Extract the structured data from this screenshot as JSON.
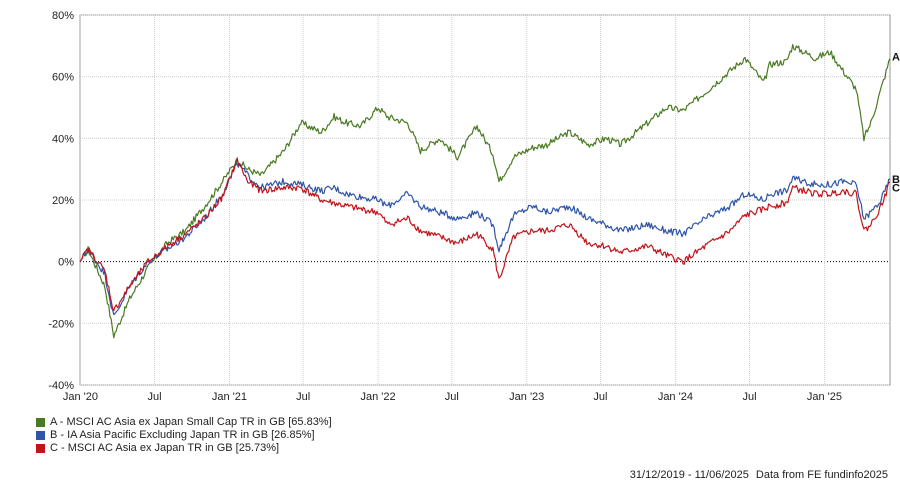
{
  "chart_data": {
    "type": "line",
    "ylim": [
      -40,
      80
    ],
    "y_ticks": [
      "80%",
      "60%",
      "40%",
      "20%",
      "0%",
      "-20%",
      "-40%"
    ],
    "y_tick_values": [
      80,
      60,
      40,
      20,
      0,
      -20,
      -40
    ],
    "x_tick_labels": [
      "Jan '20",
      "Jul",
      "Jan '21",
      "Jul",
      "Jan '22",
      "Jul",
      "Jan '23",
      "Jul",
      "Jan '24",
      "Jul",
      "Jan '25"
    ],
    "x_tick_dates": [
      "2020-01-01",
      "2020-07-01",
      "2021-01-01",
      "2021-07-01",
      "2022-01-01",
      "2022-07-01",
      "2023-01-01",
      "2023-07-01",
      "2024-01-01",
      "2024-07-01",
      "2025-01-01"
    ],
    "x_range": [
      "2019-12-31",
      "2025-06-11"
    ],
    "grid": true,
    "zero_line": "dotted",
    "dates": [
      "2019-12-31",
      "2020-01-20",
      "2020-03-01",
      "2020-03-23",
      "2020-05-01",
      "2020-06-15",
      "2020-08-01",
      "2020-09-15",
      "2020-11-01",
      "2020-12-15",
      "2021-01-20",
      "2021-02-15",
      "2021-03-20",
      "2021-05-15",
      "2021-06-25",
      "2021-08-15",
      "2021-09-15",
      "2021-10-15",
      "2021-11-20",
      "2022-01-01",
      "2022-01-25",
      "2022-03-15",
      "2022-04-15",
      "2022-06-01",
      "2022-07-15",
      "2022-09-01",
      "2022-10-10",
      "2022-10-25",
      "2022-11-30",
      "2023-01-15",
      "2023-02-20",
      "2023-04-15",
      "2023-06-01",
      "2023-07-15",
      "2023-08-20",
      "2023-10-25",
      "2023-12-10",
      "2024-01-20",
      "2024-03-15",
      "2024-05-15",
      "2024-06-20",
      "2024-08-05",
      "2024-08-20",
      "2024-09-30",
      "2024-10-15",
      "2024-12-10",
      "2025-01-15",
      "2025-02-15",
      "2025-03-20",
      "2025-04-08",
      "2025-04-25",
      "2025-05-20",
      "2025-06-11"
    ],
    "series": [
      {
        "label": "A",
        "name": "A - MSCI AC Asia ex Japan Small Cap TR in GB [65.83%]",
        "color": "#4a7a22",
        "values": [
          0,
          4,
          -8,
          -24,
          -12,
          -2,
          6,
          10,
          18,
          26,
          33,
          30,
          28,
          36,
          45,
          42,
          47,
          45,
          44,
          50,
          47,
          45,
          36,
          40,
          34,
          44,
          35,
          26,
          34,
          37,
          38,
          42,
          38,
          40,
          38,
          45,
          50,
          49,
          55,
          62,
          66,
          58,
          64,
          65,
          70,
          66,
          68,
          62,
          56,
          40,
          45,
          56,
          65.83
        ]
      },
      {
        "label": "B",
        "name": "B - IA Asia Pacific Excluding Japan TR in GB [26.85%]",
        "color": "#2f55a8",
        "values": [
          0,
          4,
          -4,
          -18,
          -8,
          0,
          4,
          8,
          14,
          22,
          32,
          28,
          24,
          26,
          25,
          23,
          24,
          22,
          21,
          20,
          18,
          22,
          18,
          16,
          14,
          16,
          12,
          4,
          15,
          18,
          16,
          18,
          14,
          12,
          10,
          12,
          10,
          9,
          14,
          18,
          22,
          20,
          22,
          23,
          27,
          25,
          25,
          26,
          25,
          14,
          16,
          20,
          26.85
        ]
      },
      {
        "label": "C",
        "name": "C - MSCI AC Asia ex Japan TR in GB [25.73%]",
        "color": "#c0141a",
        "values": [
          0,
          4,
          -3,
          -16,
          -8,
          0,
          5,
          9,
          14,
          21,
          33,
          26,
          23,
          24,
          24,
          20,
          19,
          18,
          17,
          16,
          12,
          14,
          10,
          8,
          6,
          9,
          4,
          -6,
          8,
          10,
          10,
          12,
          6,
          5,
          3,
          5,
          2,
          0,
          5,
          10,
          15,
          17,
          18,
          19,
          24,
          22,
          22,
          23,
          22,
          10,
          12,
          18,
          25.73
        ]
      }
    ]
  },
  "footer": {
    "range": "31/12/2019 - 11/06/2025",
    "source": "Data from FE fundinfo2025"
  }
}
